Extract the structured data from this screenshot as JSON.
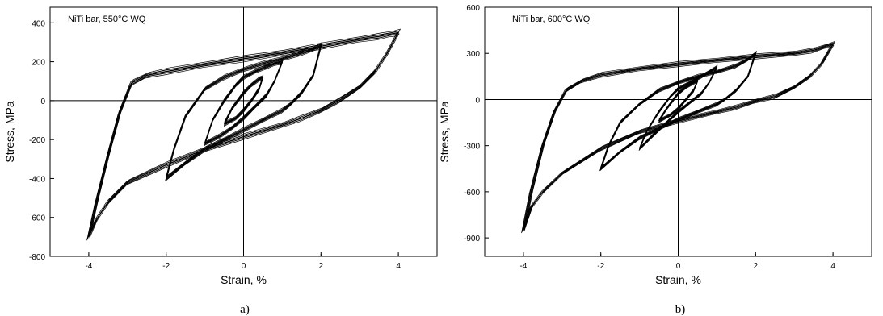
{
  "chart_data": [
    {
      "type": "line",
      "panel_caption": "a)",
      "annotation": "NiTi bar, 550°C WQ",
      "xlabel": "Strain,  %",
      "ylabel": "Stress,  MPa",
      "xlim": [
        -5,
        5
      ],
      "ylim": [
        -800,
        480
      ],
      "x_ticks": [
        -4,
        -2,
        0,
        2,
        4
      ],
      "y_ticks": [
        -800,
        -600,
        -400,
        -200,
        0,
        200,
        400
      ],
      "zero_lines": true,
      "grid": false,
      "series": [
        {
          "cycle_amplitude": 4,
          "x": [
            -4,
            -3.8,
            -3.5,
            -3.2,
            -2.9,
            -2.5,
            -2.0,
            -1.0,
            0,
            1.0,
            2.0,
            3.0,
            3.5,
            3.8,
            4,
            3.7,
            3.4,
            3.0,
            2.5,
            2.0,
            1.5,
            1.0,
            0,
            -1.0,
            -2.0,
            -3.0,
            -3.5,
            -3.8,
            -4
          ],
          "y": [
            -700,
            -520,
            -280,
            -60,
            90,
            130,
            150,
            185,
            215,
            245,
            280,
            315,
            330,
            342,
            350,
            240,
            150,
            70,
            5,
            -50,
            -90,
            -125,
            -185,
            -250,
            -330,
            -420,
            -520,
            -610,
            -700
          ]
        },
        {
          "cycle_amplitude": 2,
          "x": [
            -2,
            -1.8,
            -1.5,
            -1.0,
            -0.5,
            0,
            0.5,
            1.0,
            1.5,
            1.8,
            2,
            1.8,
            1.5,
            1.2,
            1.0,
            0.5,
            0,
            -0.5,
            -1.0,
            -1.5,
            -2
          ],
          "y": [
            -400,
            -250,
            -80,
            60,
            120,
            160,
            190,
            215,
            245,
            265,
            285,
            130,
            40,
            -20,
            -50,
            -100,
            -150,
            -200,
            -250,
            -320,
            -400
          ]
        },
        {
          "cycle_amplitude": 1,
          "x": [
            -1,
            -0.8,
            -0.5,
            -0.2,
            0,
            0.3,
            0.6,
            0.8,
            1,
            0.8,
            0.6,
            0.3,
            0,
            -0.3,
            -0.6,
            -1
          ],
          "y": [
            -220,
            -100,
            0,
            80,
            120,
            150,
            175,
            190,
            200,
            100,
            30,
            -30,
            -90,
            -140,
            -180,
            -220
          ]
        },
        {
          "cycle_amplitude": 0.5,
          "x": [
            -0.5,
            -0.3,
            0,
            0.2,
            0.4,
            0.5,
            0.4,
            0.2,
            0,
            -0.2,
            -0.5
          ],
          "y": [
            -120,
            -40,
            40,
            80,
            110,
            120,
            60,
            0,
            -50,
            -90,
            -120
          ]
        }
      ]
    },
    {
      "type": "line",
      "panel_caption": "b)",
      "annotation": "NiTi bar, 600°C WQ",
      "xlabel": "Strain,  %",
      "ylabel": "Stress,  MPa",
      "xlim": [
        -5,
        5
      ],
      "ylim": [
        -1020,
        600
      ],
      "x_ticks": [
        -4,
        -2,
        0,
        2,
        4
      ],
      "y_ticks": [
        -900,
        -600,
        -300,
        0,
        300,
        600
      ],
      "zero_lines": true,
      "grid": false,
      "series": [
        {
          "cycle_amplitude": 4,
          "x": [
            -4,
            -3.8,
            -3.5,
            -3.2,
            -2.9,
            -2.5,
            -2.0,
            -1.0,
            0,
            1.0,
            2.0,
            3.0,
            3.5,
            3.8,
            4,
            3.7,
            3.4,
            3.0,
            2.5,
            2.0,
            1.5,
            1.0,
            0,
            -1.0,
            -2.0,
            -3.0,
            -3.5,
            -3.8,
            -4
          ],
          "y": [
            -850,
            -600,
            -300,
            -80,
            60,
            120,
            160,
            200,
            230,
            255,
            280,
            300,
            320,
            345,
            360,
            230,
            150,
            80,
            20,
            -10,
            -50,
            -80,
            -140,
            -210,
            -320,
            -480,
            -600,
            -700,
            -850
          ]
        },
        {
          "cycle_amplitude": 2,
          "x": [
            -2,
            -1.8,
            -1.5,
            -1.0,
            -0.5,
            0,
            0.5,
            1.0,
            1.5,
            1.8,
            2,
            1.8,
            1.5,
            1.2,
            1.0,
            0.5,
            0,
            -0.5,
            -1.0,
            -1.5,
            -2
          ],
          "y": [
            -450,
            -300,
            -150,
            -30,
            60,
            110,
            150,
            180,
            220,
            260,
            300,
            150,
            60,
            0,
            -30,
            -80,
            -130,
            -190,
            -250,
            -340,
            -450
          ]
        },
        {
          "cycle_amplitude": 1,
          "x": [
            -1,
            -0.8,
            -0.5,
            -0.2,
            0,
            0.3,
            0.6,
            0.8,
            1,
            0.8,
            0.6,
            0.3,
            0,
            -0.3,
            -0.6,
            -1
          ],
          "y": [
            -320,
            -200,
            -80,
            20,
            70,
            110,
            150,
            180,
            210,
            110,
            40,
            -20,
            -80,
            -150,
            -220,
            -320
          ]
        },
        {
          "cycle_amplitude": 0.5,
          "x": [
            -0.5,
            -0.3,
            0,
            0.2,
            0.4,
            0.5,
            0.4,
            0.2,
            0,
            -0.2,
            -0.5
          ],
          "y": [
            -140,
            -60,
            40,
            80,
            110,
            120,
            60,
            0,
            -60,
            -100,
            -140
          ]
        }
      ]
    }
  ]
}
